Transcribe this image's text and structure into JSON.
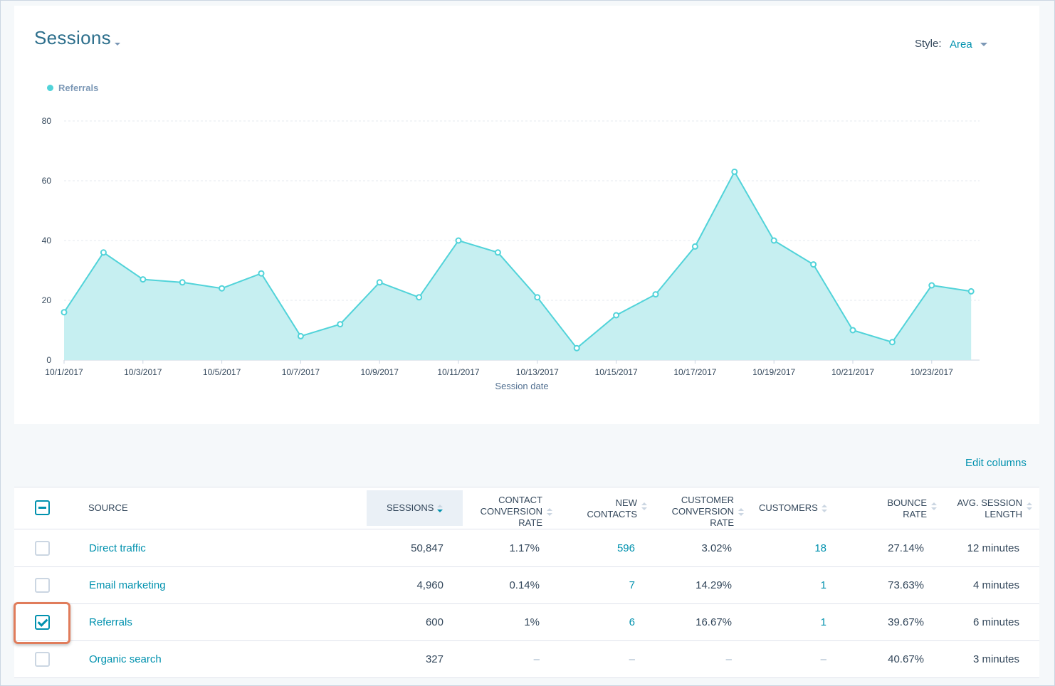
{
  "header": {
    "title": "Sessions",
    "style_label": "Style:",
    "style_value": "Area"
  },
  "legend": {
    "label": "Referrals"
  },
  "chart_data": {
    "type": "area",
    "xlabel": "Session date",
    "ylabel": "",
    "ylim": [
      0,
      80
    ],
    "yticks": [
      0,
      20,
      40,
      60,
      80
    ],
    "x": [
      "10/1/2017",
      "10/2/2017",
      "10/3/2017",
      "10/4/2017",
      "10/5/2017",
      "10/6/2017",
      "10/7/2017",
      "10/8/2017",
      "10/9/2017",
      "10/10/2017",
      "10/11/2017",
      "10/12/2017",
      "10/13/2017",
      "10/14/2017",
      "10/15/2017",
      "10/16/2017",
      "10/17/2017",
      "10/18/2017",
      "10/19/2017",
      "10/20/2017",
      "10/21/2017",
      "10/22/2017",
      "10/23/2017",
      "10/24/2017"
    ],
    "xtick_labels": [
      "10/1/2017",
      "10/3/2017",
      "10/5/2017",
      "10/7/2017",
      "10/9/2017",
      "10/11/2017",
      "10/13/2017",
      "10/15/2017",
      "10/17/2017",
      "10/19/2017",
      "10/21/2017",
      "10/23/2017"
    ],
    "series": [
      {
        "name": "Referrals",
        "color": "#51d3d9",
        "values": [
          16,
          36,
          27,
          26,
          24,
          29,
          8,
          12,
          26,
          21,
          40,
          36,
          21,
          4,
          15,
          22,
          38,
          63,
          40,
          32,
          10,
          6,
          25,
          23
        ]
      }
    ],
    "grid": true,
    "legend_position": "top-left"
  },
  "table": {
    "edit_columns": "Edit columns",
    "columns": [
      {
        "key": "source",
        "label": "SOURCE"
      },
      {
        "key": "sessions",
        "label": "SESSIONS"
      },
      {
        "key": "ccr",
        "label_lines": [
          "CONTACT",
          "CONVERSION",
          "RATE"
        ]
      },
      {
        "key": "new_contacts",
        "label_lines": [
          "NEW",
          "CONTACTS"
        ]
      },
      {
        "key": "cust_cr",
        "label_lines": [
          "CUSTOMER",
          "CONVERSION",
          "RATE"
        ]
      },
      {
        "key": "customers",
        "label": "CUSTOMERS"
      },
      {
        "key": "bounce",
        "label_lines": [
          "BOUNCE",
          "RATE"
        ]
      },
      {
        "key": "avg",
        "label_lines": [
          "AVG. SESSION",
          "LENGTH"
        ]
      }
    ],
    "rows": [
      {
        "source": "Direct traffic",
        "sessions": "50,847",
        "ccr": "1.17%",
        "new_contacts": "596",
        "cust_cr": "3.02%",
        "customers": "18",
        "bounce": "27.14%",
        "avg": "12 minutes",
        "checked": false
      },
      {
        "source": "Email marketing",
        "sessions": "4,960",
        "ccr": "0.14%",
        "new_contacts": "7",
        "cust_cr": "14.29%",
        "customers": "1",
        "bounce": "73.63%",
        "avg": "4 minutes",
        "checked": false
      },
      {
        "source": "Referrals",
        "sessions": "600",
        "ccr": "1%",
        "new_contacts": "6",
        "cust_cr": "16.67%",
        "customers": "1",
        "bounce": "39.67%",
        "avg": "6 minutes",
        "checked": true
      },
      {
        "source": "Organic search",
        "sessions": "327",
        "ccr": "–",
        "new_contacts": "–",
        "cust_cr": "–",
        "customers": "–",
        "bounce": "40.67%",
        "avg": "3 minutes",
        "checked": false
      }
    ]
  }
}
